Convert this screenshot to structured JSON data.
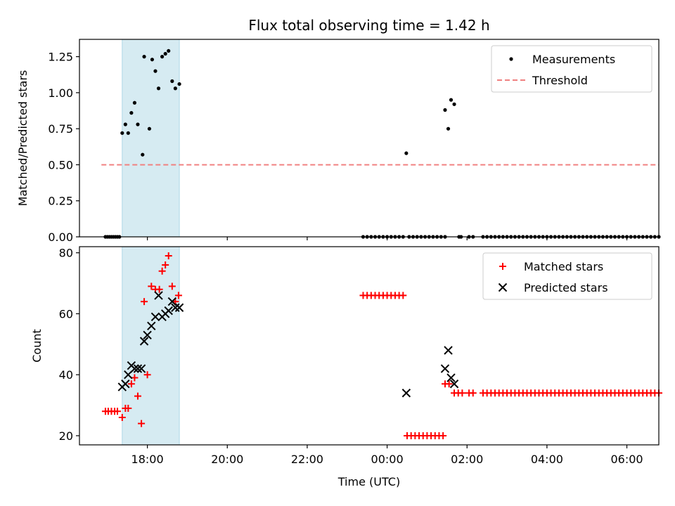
{
  "chart_data": [
    {
      "type": "scatter",
      "title": "Flux total observing time = 1.42 h",
      "xlabel": "",
      "ylabel": "Matched/Predicted stars",
      "xlim_hours": [
        16.3,
        30.8
      ],
      "ylim": [
        0,
        1.37
      ],
      "yticks": [
        0.0,
        0.25,
        0.5,
        0.75,
        1.0,
        1.25
      ],
      "ytick_labels": [
        "0.00",
        "0.25",
        "0.50",
        "0.75",
        "1.00",
        "1.25"
      ],
      "xticks_hours": [
        18,
        20,
        22,
        24,
        26,
        28,
        30
      ],
      "xtick_labels": [
        "18:00",
        "20:00",
        "22:00",
        "00:00",
        "02:00",
        "04:00",
        "06:00"
      ],
      "shaded_span_hours": [
        17.37,
        18.8
      ],
      "legend_position": "top-right",
      "series": [
        {
          "name": "Measurements",
          "marker": "dot",
          "color": "#000000",
          "points": [
            [
              16.95,
              0
            ],
            [
              17.0,
              0
            ],
            [
              17.05,
              0
            ],
            [
              17.1,
              0
            ],
            [
              17.15,
              0
            ],
            [
              17.2,
              0
            ],
            [
              17.25,
              0
            ],
            [
              17.3,
              0
            ],
            [
              17.37,
              0.72
            ],
            [
              17.45,
              0.78
            ],
            [
              17.52,
              0.72
            ],
            [
              17.6,
              0.86
            ],
            [
              17.68,
              0.93
            ],
            [
              17.76,
              0.78
            ],
            [
              17.88,
              0.57
            ],
            [
              17.92,
              1.25
            ],
            [
              18.05,
              0.75
            ],
            [
              18.12,
              1.23
            ],
            [
              18.2,
              1.15
            ],
            [
              18.28,
              1.03
            ],
            [
              18.37,
              1.25
            ],
            [
              18.45,
              1.27
            ],
            [
              18.53,
              1.29
            ],
            [
              18.62,
              1.08
            ],
            [
              18.7,
              1.03
            ],
            [
              18.8,
              1.06
            ],
            [
              23.4,
              0
            ],
            [
              23.5,
              0
            ],
            [
              23.6,
              0
            ],
            [
              23.7,
              0
            ],
            [
              23.8,
              0
            ],
            [
              23.9,
              0
            ],
            [
              24.0,
              0
            ],
            [
              24.1,
              0
            ],
            [
              24.2,
              0
            ],
            [
              24.3,
              0
            ],
            [
              24.4,
              0
            ],
            [
              24.48,
              0.58
            ],
            [
              24.55,
              0
            ],
            [
              24.65,
              0
            ],
            [
              24.75,
              0
            ],
            [
              24.85,
              0
            ],
            [
              24.95,
              0
            ],
            [
              25.05,
              0
            ],
            [
              25.15,
              0
            ],
            [
              25.25,
              0
            ],
            [
              25.35,
              0
            ],
            [
              25.45,
              0
            ],
            [
              25.45,
              0.88
            ],
            [
              25.53,
              0.75
            ],
            [
              25.6,
              0.95
            ],
            [
              25.68,
              0.92
            ],
            [
              25.8,
              0
            ],
            [
              25.85,
              0
            ],
            [
              26.05,
              0
            ],
            [
              26.15,
              0
            ],
            [
              26.4,
              0
            ],
            [
              26.5,
              0
            ],
            [
              26.6,
              0
            ],
            [
              26.7,
              0
            ],
            [
              26.8,
              0
            ],
            [
              26.9,
              0
            ],
            [
              27.0,
              0
            ],
            [
              27.1,
              0
            ],
            [
              27.2,
              0
            ],
            [
              27.3,
              0
            ],
            [
              27.4,
              0
            ],
            [
              27.5,
              0
            ],
            [
              27.6,
              0
            ],
            [
              27.7,
              0
            ],
            [
              27.8,
              0
            ],
            [
              27.9,
              0
            ],
            [
              28.0,
              0
            ],
            [
              28.1,
              0
            ],
            [
              28.2,
              0
            ],
            [
              28.3,
              0
            ],
            [
              28.4,
              0
            ],
            [
              28.5,
              0
            ],
            [
              28.6,
              0
            ],
            [
              28.7,
              0
            ],
            [
              28.8,
              0
            ],
            [
              28.9,
              0
            ],
            [
              29.0,
              0
            ],
            [
              29.1,
              0
            ],
            [
              29.2,
              0
            ],
            [
              29.3,
              0
            ],
            [
              29.4,
              0
            ],
            [
              29.5,
              0
            ],
            [
              29.6,
              0
            ],
            [
              29.7,
              0
            ],
            [
              29.8,
              0
            ],
            [
              29.9,
              0
            ],
            [
              30.0,
              0
            ],
            [
              30.1,
              0
            ],
            [
              30.2,
              0
            ],
            [
              30.3,
              0
            ],
            [
              30.4,
              0
            ],
            [
              30.5,
              0
            ],
            [
              30.6,
              0
            ],
            [
              30.7,
              0
            ],
            [
              30.8,
              0
            ]
          ]
        },
        {
          "name": "Threshold",
          "marker": "dashed-line",
          "color": "#f08080",
          "points": [
            [
              16.85,
              0.5
            ],
            [
              30.8,
              0.5
            ]
          ]
        }
      ]
    },
    {
      "type": "scatter",
      "title": "",
      "xlabel": "Time (UTC)",
      "ylabel": "Count",
      "xlim_hours": [
        16.3,
        30.8
      ],
      "ylim": [
        17,
        82
      ],
      "yticks": [
        20,
        40,
        60,
        80
      ],
      "ytick_labels": [
        "20",
        "40",
        "60",
        "80"
      ],
      "xticks_hours": [
        18,
        20,
        22,
        24,
        26,
        28,
        30
      ],
      "xtick_labels": [
        "18:00",
        "20:00",
        "22:00",
        "00:00",
        "02:00",
        "04:00",
        "06:00"
      ],
      "shaded_span_hours": [
        17.37,
        18.8
      ],
      "legend_position": "top-right",
      "series": [
        {
          "name": "Matched stars",
          "marker": "plus",
          "color": "#ff0000",
          "points": [
            [
              16.95,
              28
            ],
            [
              17.02,
              28
            ],
            [
              17.1,
              28
            ],
            [
              17.18,
              28
            ],
            [
              17.25,
              28
            ],
            [
              17.37,
              26
            ],
            [
              17.45,
              29
            ],
            [
              17.52,
              29
            ],
            [
              17.6,
              37
            ],
            [
              17.68,
              39
            ],
            [
              17.76,
              33
            ],
            [
              17.85,
              24
            ],
            [
              17.92,
              64
            ],
            [
              18.0,
              40
            ],
            [
              18.1,
              69
            ],
            [
              18.2,
              68
            ],
            [
              18.3,
              68
            ],
            [
              18.37,
              74
            ],
            [
              18.45,
              76
            ],
            [
              18.53,
              79
            ],
            [
              18.62,
              69
            ],
            [
              18.7,
              64
            ],
            [
              18.78,
              66
            ],
            [
              23.4,
              66
            ],
            [
              23.5,
              66
            ],
            [
              23.6,
              66
            ],
            [
              23.7,
              66
            ],
            [
              23.8,
              66
            ],
            [
              23.9,
              66
            ],
            [
              24.0,
              66
            ],
            [
              24.1,
              66
            ],
            [
              24.2,
              66
            ],
            [
              24.3,
              66
            ],
            [
              24.4,
              66
            ],
            [
              24.5,
              20
            ],
            [
              24.6,
              20
            ],
            [
              24.7,
              20
            ],
            [
              24.8,
              20
            ],
            [
              24.9,
              20
            ],
            [
              25.0,
              20
            ],
            [
              25.1,
              20
            ],
            [
              25.2,
              20
            ],
            [
              25.3,
              20
            ],
            [
              25.4,
              20
            ],
            [
              25.45,
              37
            ],
            [
              25.55,
              37
            ],
            [
              25.68,
              34
            ],
            [
              25.78,
              34
            ],
            [
              25.88,
              34
            ],
            [
              26.05,
              34
            ],
            [
              26.15,
              34
            ],
            [
              26.4,
              34
            ],
            [
              26.5,
              34
            ],
            [
              26.6,
              34
            ],
            [
              26.7,
              34
            ],
            [
              26.8,
              34
            ],
            [
              26.9,
              34
            ],
            [
              27.0,
              34
            ],
            [
              27.1,
              34
            ],
            [
              27.2,
              34
            ],
            [
              27.3,
              34
            ],
            [
              27.4,
              34
            ],
            [
              27.5,
              34
            ],
            [
              27.6,
              34
            ],
            [
              27.7,
              34
            ],
            [
              27.8,
              34
            ],
            [
              27.9,
              34
            ],
            [
              28.0,
              34
            ],
            [
              28.1,
              34
            ],
            [
              28.2,
              34
            ],
            [
              28.3,
              34
            ],
            [
              28.4,
              34
            ],
            [
              28.5,
              34
            ],
            [
              28.6,
              34
            ],
            [
              28.7,
              34
            ],
            [
              28.8,
              34
            ],
            [
              28.9,
              34
            ],
            [
              29.0,
              34
            ],
            [
              29.1,
              34
            ],
            [
              29.2,
              34
            ],
            [
              29.3,
              34
            ],
            [
              29.4,
              34
            ],
            [
              29.5,
              34
            ],
            [
              29.6,
              34
            ],
            [
              29.7,
              34
            ],
            [
              29.8,
              34
            ],
            [
              29.9,
              34
            ],
            [
              30.0,
              34
            ],
            [
              30.1,
              34
            ],
            [
              30.2,
              34
            ],
            [
              30.3,
              34
            ],
            [
              30.4,
              34
            ],
            [
              30.5,
              34
            ],
            [
              30.6,
              34
            ],
            [
              30.7,
              34
            ],
            [
              30.8,
              34
            ]
          ]
        },
        {
          "name": "Predicted stars",
          "marker": "x",
          "color": "#000000",
          "points": [
            [
              17.37,
              36
            ],
            [
              17.45,
              37
            ],
            [
              17.52,
              40
            ],
            [
              17.6,
              43
            ],
            [
              17.68,
              42
            ],
            [
              17.76,
              42
            ],
            [
              17.85,
              42
            ],
            [
              17.92,
              51
            ],
            [
              18.0,
              53
            ],
            [
              18.1,
              56
            ],
            [
              18.2,
              59
            ],
            [
              18.28,
              66
            ],
            [
              18.37,
              59
            ],
            [
              18.45,
              60
            ],
            [
              18.53,
              61
            ],
            [
              18.62,
              64
            ],
            [
              18.7,
              62
            ],
            [
              18.8,
              62
            ],
            [
              24.48,
              34
            ],
            [
              25.45,
              42
            ],
            [
              25.53,
              48
            ],
            [
              25.6,
              39
            ],
            [
              25.68,
              37
            ]
          ]
        }
      ]
    }
  ]
}
